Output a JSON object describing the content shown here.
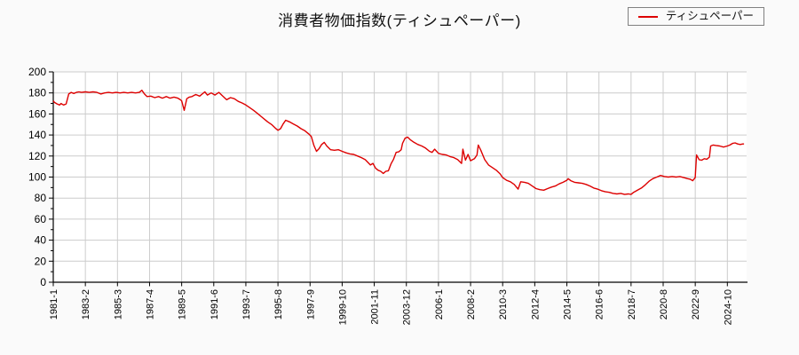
{
  "title": "消費者物価指数(ティシュペーパー)",
  "legend": {
    "label": "ティシュペーパー"
  },
  "colors": {
    "line": "#dd0000",
    "grid": "#cccccc",
    "axis": "#000000",
    "plot_bg": "#ffffff",
    "page_bg": "#fafafa",
    "legend_border": "#808080",
    "text": "#111111"
  },
  "chart_data": {
    "type": "line",
    "title": "消費者物価指数(ティシュペーパー)",
    "series_name": "ティシュペーパー",
    "ylim": [
      0,
      200
    ],
    "y_ticks": [
      0,
      20,
      40,
      60,
      80,
      100,
      120,
      140,
      160,
      180,
      200
    ],
    "y_minor_step": 10,
    "grid": true,
    "legend_position": "top-right",
    "x_start": "1981-1",
    "x_end": "2026-1",
    "x_tick_labels": [
      "1981-1",
      "1983-2",
      "1985-3",
      "1987-4",
      "1989-5",
      "1991-6",
      "1993-7",
      "1995-8",
      "1997-9",
      "1999-10",
      "2001-11",
      "2003-12",
      "2006-1",
      "2008-2",
      "2010-3",
      "2012-4",
      "2014-5",
      "2016-6",
      "2018-7",
      "2020-8",
      "2022-9",
      "2024-10"
    ],
    "points": [
      [
        "1981-1",
        172.5
      ],
      [
        "1981-2",
        171
      ],
      [
        "1981-4",
        169.5
      ],
      [
        "1981-6",
        168.5
      ],
      [
        "1981-7",
        170
      ],
      [
        "1981-9",
        168.5
      ],
      [
        "1981-11",
        169.5
      ],
      [
        "1981-12",
        174
      ],
      [
        "1982-1",
        179
      ],
      [
        "1982-3",
        180.5
      ],
      [
        "1982-5",
        179.5
      ],
      [
        "1982-7",
        180.5
      ],
      [
        "1982-9",
        181
      ],
      [
        "1982-11",
        180.5
      ],
      [
        "1983-2",
        181
      ],
      [
        "1983-5",
        180.5
      ],
      [
        "1983-8",
        181
      ],
      [
        "1983-11",
        180.5
      ],
      [
        "1984-2",
        179
      ],
      [
        "1984-5",
        180
      ],
      [
        "1984-8",
        180.5
      ],
      [
        "1984-11",
        180
      ],
      [
        "1985-2",
        180.5
      ],
      [
        "1985-5",
        180
      ],
      [
        "1985-8",
        180.5
      ],
      [
        "1985-11",
        180
      ],
      [
        "1986-2",
        180.5
      ],
      [
        "1986-5",
        180
      ],
      [
        "1986-8",
        180.5
      ],
      [
        "1986-10",
        182.5
      ],
      [
        "1986-12",
        179
      ],
      [
        "1987-2",
        176.5
      ],
      [
        "1987-5",
        177
      ],
      [
        "1987-8",
        175.5
      ],
      [
        "1987-11",
        176.5
      ],
      [
        "1988-2",
        175
      ],
      [
        "1988-5",
        176.5
      ],
      [
        "1988-8",
        175
      ],
      [
        "1988-11",
        176
      ],
      [
        "1989-2",
        175
      ],
      [
        "1989-4",
        173.5
      ],
      [
        "1989-5",
        172.5
      ],
      [
        "1989-7",
        163.5
      ],
      [
        "1989-9",
        174.5
      ],
      [
        "1989-11",
        176
      ],
      [
        "1990-1",
        176.5
      ],
      [
        "1990-4",
        178.5
      ],
      [
        "1990-7",
        177
      ],
      [
        "1990-11",
        181
      ],
      [
        "1991-1",
        178
      ],
      [
        "1991-4",
        180
      ],
      [
        "1991-7",
        178
      ],
      [
        "1991-10",
        180.5
      ],
      [
        "1992-1",
        177
      ],
      [
        "1992-4",
        173.5
      ],
      [
        "1992-7",
        175.5
      ],
      [
        "1992-10",
        174.5
      ],
      [
        "1993-1",
        172
      ],
      [
        "1993-4",
        170.5
      ],
      [
        "1993-7",
        168.5
      ],
      [
        "1993-10",
        166
      ],
      [
        "1994-1",
        163.5
      ],
      [
        "1994-4",
        160.5
      ],
      [
        "1994-7",
        157.5
      ],
      [
        "1994-10",
        154.5
      ],
      [
        "1994-12",
        152.5
      ],
      [
        "1995-3",
        150
      ],
      [
        "1995-6",
        146.5
      ],
      [
        "1995-8",
        144.5
      ],
      [
        "1995-10",
        146
      ],
      [
        "1995-12",
        150.5
      ],
      [
        "1996-2",
        154
      ],
      [
        "1996-5",
        152.5
      ],
      [
        "1996-8",
        150.5
      ],
      [
        "1996-11",
        148.5
      ],
      [
        "1997-2",
        146
      ],
      [
        "1997-5",
        144
      ],
      [
        "1997-8",
        141
      ],
      [
        "1997-10",
        138.5
      ],
      [
        "1997-12",
        130
      ],
      [
        "1998-2",
        124.5
      ],
      [
        "1998-4",
        127
      ],
      [
        "1998-6",
        131
      ],
      [
        "1998-8",
        133
      ],
      [
        "1998-10",
        129.5
      ],
      [
        "1999-1",
        126
      ],
      [
        "1999-4",
        125.5
      ],
      [
        "1999-7",
        126
      ],
      [
        "1999-10",
        124.5
      ],
      [
        "2000-1",
        123
      ],
      [
        "2000-4",
        122
      ],
      [
        "2000-7",
        121.5
      ],
      [
        "2000-10",
        120
      ],
      [
        "2001-1",
        118.5
      ],
      [
        "2001-4",
        116.5
      ],
      [
        "2001-6",
        114
      ],
      [
        "2001-8",
        111.5
      ],
      [
        "2001-10",
        113
      ],
      [
        "2001-12",
        108.5
      ],
      [
        "2002-2",
        106.5
      ],
      [
        "2002-4",
        105.5
      ],
      [
        "2002-6",
        103.5
      ],
      [
        "2002-8",
        105.5
      ],
      [
        "2002-10",
        106
      ],
      [
        "2002-12",
        112.5
      ],
      [
        "2003-2",
        117
      ],
      [
        "2003-4",
        123.5
      ],
      [
        "2003-6",
        124
      ],
      [
        "2003-8",
        126
      ],
      [
        "2003-9",
        132
      ],
      [
        "2003-11",
        137
      ],
      [
        "2004-1",
        138
      ],
      [
        "2004-3",
        135.5
      ],
      [
        "2004-6",
        133
      ],
      [
        "2004-9",
        131
      ],
      [
        "2004-12",
        129.5
      ],
      [
        "2005-3",
        127.5
      ],
      [
        "2005-6",
        124.5
      ],
      [
        "2005-8",
        123.5
      ],
      [
        "2005-10",
        126.5
      ],
      [
        "2006-1",
        122.5
      ],
      [
        "2006-4",
        121.5
      ],
      [
        "2006-7",
        121
      ],
      [
        "2006-10",
        119.5
      ],
      [
        "2007-1",
        118.5
      ],
      [
        "2007-4",
        116.5
      ],
      [
        "2007-7",
        113
      ],
      [
        "2007-8",
        126.5
      ],
      [
        "2007-10",
        116
      ],
      [
        "2007-12",
        121.5
      ],
      [
        "2008-2",
        115.5
      ],
      [
        "2008-5",
        117.5
      ],
      [
        "2008-7",
        121
      ],
      [
        "2008-8",
        130.5
      ],
      [
        "2008-10",
        125.5
      ],
      [
        "2009-1",
        116.5
      ],
      [
        "2009-4",
        111.5
      ],
      [
        "2009-7",
        109
      ],
      [
        "2009-10",
        106.5
      ],
      [
        "2010-1",
        103
      ],
      [
        "2010-3",
        99.5
      ],
      [
        "2010-6",
        97
      ],
      [
        "2010-9",
        95.5
      ],
      [
        "2010-12",
        93
      ],
      [
        "2011-3",
        88.5
      ],
      [
        "2011-5",
        95.5
      ],
      [
        "2011-8",
        95
      ],
      [
        "2011-11",
        94
      ],
      [
        "2012-2",
        91.5
      ],
      [
        "2012-5",
        89
      ],
      [
        "2012-8",
        88
      ],
      [
        "2012-11",
        87.5
      ],
      [
        "2013-2",
        89
      ],
      [
        "2013-5",
        90.5
      ],
      [
        "2013-8",
        91.5
      ],
      [
        "2013-11",
        93.5
      ],
      [
        "2014-2",
        95
      ],
      [
        "2014-5",
        97
      ],
      [
        "2014-6",
        98.5
      ],
      [
        "2014-8",
        96.5
      ],
      [
        "2014-11",
        95
      ],
      [
        "2015-2",
        94.5
      ],
      [
        "2015-5",
        94
      ],
      [
        "2015-8",
        93
      ],
      [
        "2015-11",
        91.5
      ],
      [
        "2016-2",
        89.5
      ],
      [
        "2016-5",
        88.5
      ],
      [
        "2016-8",
        87
      ],
      [
        "2016-11",
        86
      ],
      [
        "2017-2",
        85.5
      ],
      [
        "2017-5",
        84.5
      ],
      [
        "2017-8",
        84
      ],
      [
        "2017-11",
        84.5
      ],
      [
        "2018-2",
        83.5
      ],
      [
        "2018-5",
        84
      ],
      [
        "2018-7",
        83.5
      ],
      [
        "2018-9",
        85.5
      ],
      [
        "2018-12",
        87.5
      ],
      [
        "2019-3",
        89.5
      ],
      [
        "2019-6",
        92.5
      ],
      [
        "2019-9",
        96
      ],
      [
        "2019-12",
        98.5
      ],
      [
        "2020-3",
        100
      ],
      [
        "2020-6",
        101.5
      ],
      [
        "2020-9",
        100.5
      ],
      [
        "2020-12",
        100
      ],
      [
        "2021-3",
        100.5
      ],
      [
        "2021-6",
        100
      ],
      [
        "2021-9",
        100.5
      ],
      [
        "2021-12",
        99.5
      ],
      [
        "2022-3",
        98.5
      ],
      [
        "2022-5",
        98
      ],
      [
        "2022-7",
        96.5
      ],
      [
        "2022-9",
        99.5
      ],
      [
        "2022-10",
        121
      ],
      [
        "2022-12",
        116.5
      ],
      [
        "2023-2",
        116
      ],
      [
        "2023-4",
        117.5
      ],
      [
        "2023-6",
        117
      ],
      [
        "2023-8",
        119
      ],
      [
        "2023-9",
        129.5
      ],
      [
        "2023-11",
        130.5
      ],
      [
        "2024-1",
        130
      ],
      [
        "2024-4",
        129.5
      ],
      [
        "2024-7",
        128.5
      ],
      [
        "2024-10",
        129.5
      ],
      [
        "2024-12",
        130.5
      ],
      [
        "2025-2",
        132
      ],
      [
        "2025-4",
        132.5
      ],
      [
        "2025-6",
        131.5
      ],
      [
        "2025-8",
        131
      ],
      [
        "2025-10",
        131.5
      ],
      [
        "2025-11",
        131.5
      ]
    ]
  }
}
